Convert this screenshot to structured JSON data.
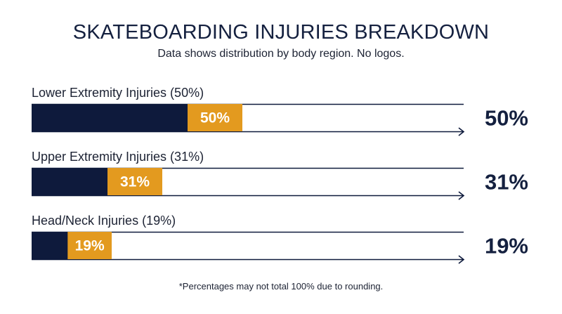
{
  "header": {
    "title": "SKATEBOARDING INJURIES BREAKDOWN",
    "subtitle": "Data shows distribution by body region. No logos."
  },
  "footnote": "*Percentages may not total 100% due to rounding.",
  "colors": {
    "bar": "#0e1a3c",
    "label_box": "#e39a1f",
    "label_text": "#ffffff",
    "axis": "#0e1a3c",
    "text": "#1c2233"
  },
  "chart_data": {
    "type": "bar",
    "orientation": "horizontal",
    "unit": "%",
    "xlim": [
      0,
      100
    ],
    "categories": [
      "Lower Extremity Injuries (50%)",
      "Upper Extremity Injuries (31%)",
      "Head/Neck Injuries (19%)"
    ],
    "values": [
      50,
      31,
      19
    ],
    "bar_labels": [
      "50%",
      "31%",
      "19%"
    ],
    "right_labels": [
      "50%",
      "31%",
      "19%"
    ]
  }
}
